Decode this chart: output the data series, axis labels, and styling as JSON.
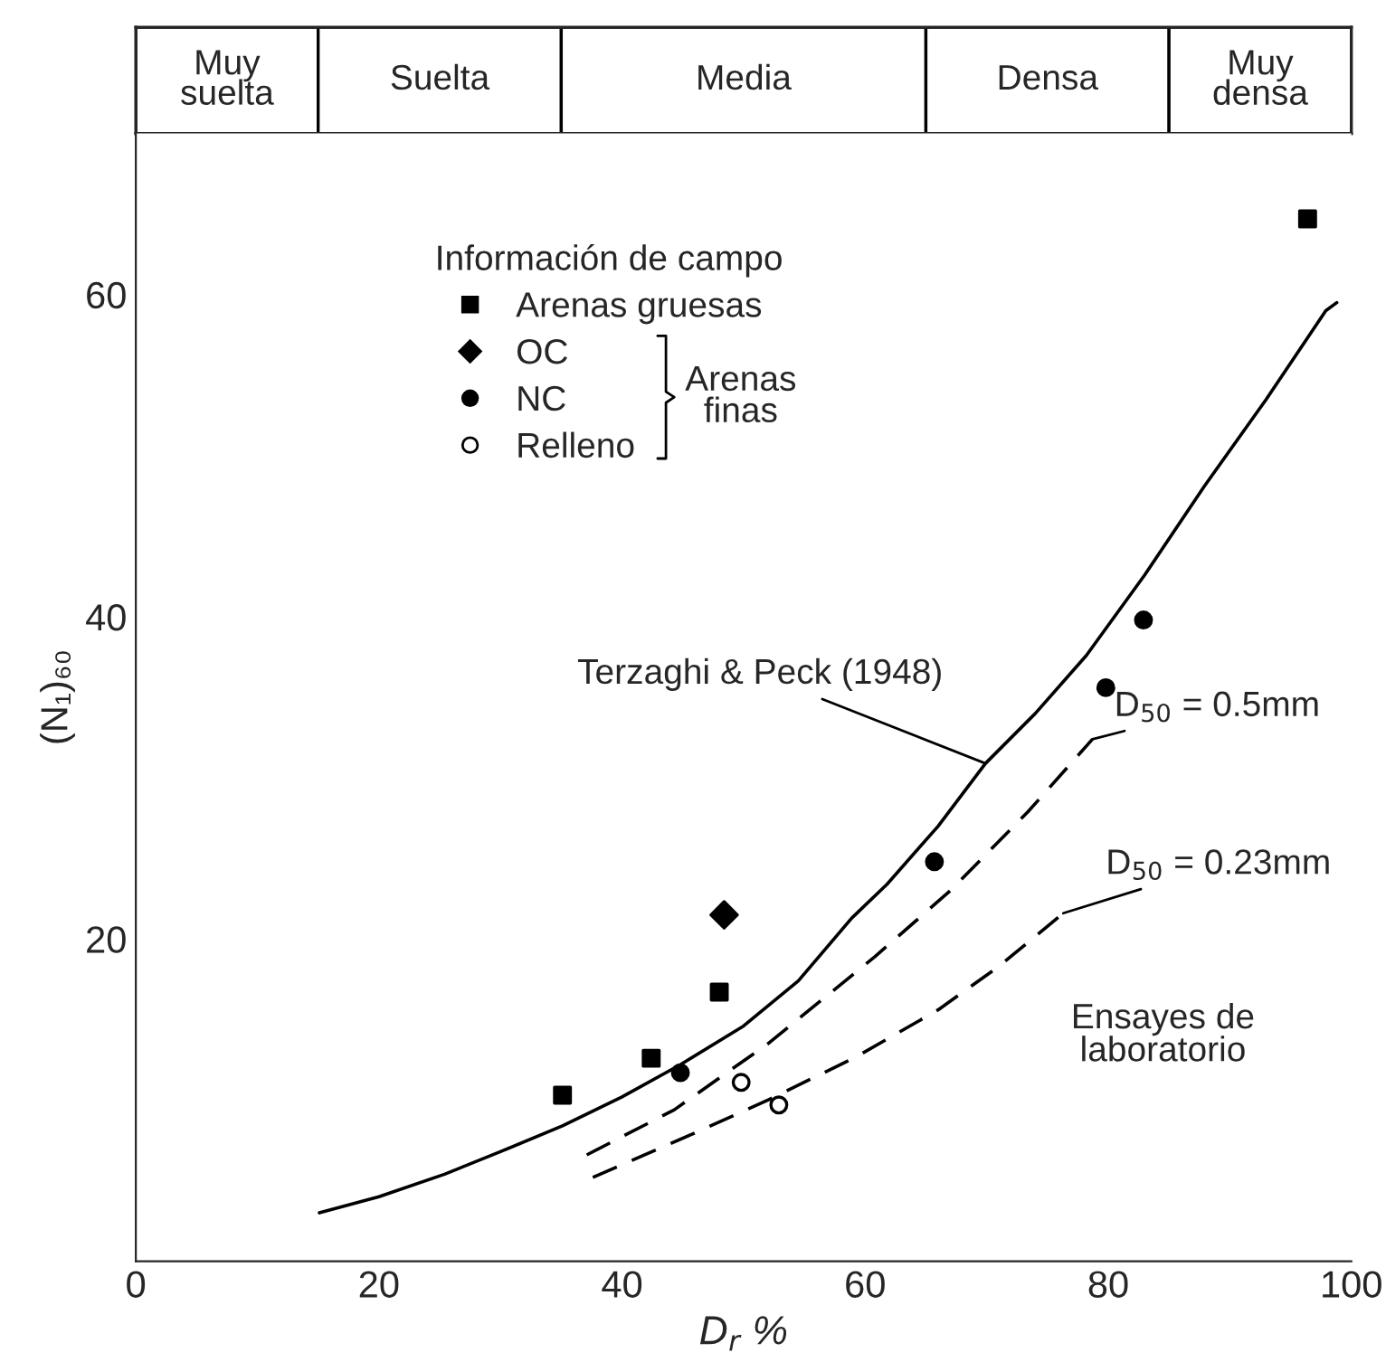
{
  "chart_data": [
    {
      "type": "bar",
      "orientation": "horizontal",
      "stacked": true,
      "categories": [
        null
      ],
      "xlim": [
        0,
        100
      ],
      "series": [
        {
          "color": "#ffffff",
          "values": [
            15
          ],
          "value_labels": [
            "Muy\nsuelta"
          ]
        },
        {
          "color": "#ffffff",
          "values": [
            20
          ],
          "value_labels": [
            "Suelta"
          ]
        },
        {
          "color": "#ffffff",
          "values": [
            30
          ],
          "value_labels": [
            "Media"
          ]
        },
        {
          "color": "#ffffff",
          "values": [
            20
          ],
          "value_labels": [
            "Densa"
          ]
        },
        {
          "color": "#ffffff",
          "values": [
            15
          ],
          "value_labels": [
            "Muy\ndensa"
          ]
        }
      ]
    },
    {
      "type": "scatter",
      "xlabel": "D$_{r}$ %",
      "ylabel": "(N₁)₆₀",
      "legend_title": "Información de campo",
      "xlim": [
        0,
        100
      ],
      "ylim": [
        0,
        70
      ],
      "xticks": [
        0,
        20,
        40,
        60,
        80,
        100
      ],
      "yticks": [
        20,
        40,
        60
      ],
      "legend": "top left",
      "series": [
        {
          "name": "Arenas gruesas",
          "marker": "square",
          "color": "#000000",
          "x": [
            35.1,
            42.4,
            48.0,
            96.4
          ],
          "values": [
            10.3,
            12.6,
            16.7,
            64.7
          ]
        },
        {
          "name": "OC",
          "marker": "diamond",
          "color": "#000000",
          "x": [
            48.4
          ],
          "values": [
            21.5
          ]
        },
        {
          "name": "NC",
          "marker": "circle",
          "color": "#000000",
          "x": [
            44.8,
            65.7,
            79.8,
            82.9
          ],
          "values": [
            11.7,
            24.8,
            35.6,
            39.8
          ]
        },
        {
          "name": "Relleno",
          "marker": "circle",
          "color": "#ffffff",
          "x": [
            49.8,
            52.9
          ],
          "values": [
            11.1,
            9.7
          ]
        },
        {
          "type": "line",
          "line_style": "solid",
          "color": "#000000",
          "x": [
            15.1,
            20.0,
            25.4,
            30.0,
            35.1,
            40.0,
            44.8,
            50.0,
            54.5,
            58.9,
            61.8,
            66.0,
            69.9,
            74.0,
            78.2,
            83.0,
            87.9,
            93.0,
            97.9,
            98.8
          ],
          "values": [
            3.0,
            4.0,
            5.4,
            6.8,
            8.4,
            10.2,
            12.2,
            14.6,
            17.4,
            21.3,
            23.4,
            27.0,
            30.9,
            34.0,
            37.6,
            42.6,
            48.1,
            53.5,
            59.0,
            59.5
          ]
        },
        {
          "type": "line",
          "line_style": "dashed",
          "color": "#000000",
          "x": [
            37.1,
            44.3,
            52.0,
            60.8,
            67.0,
            73.4,
            78.7
          ],
          "values": [
            6.6,
            9.4,
            13.5,
            18.9,
            23.0,
            27.9,
            32.4
          ]
        },
        {
          "type": "line",
          "line_style": "dashed",
          "color": "#000000",
          "x": [
            37.6,
            45.8,
            52.0,
            59.3,
            66.0,
            71.0,
            76.3
          ],
          "values": [
            5.2,
            7.9,
            10.0,
            12.7,
            15.6,
            18.3,
            21.6
          ]
        }
      ],
      "annotations": [
        {
          "text": "Terzaghi & Peck (1948)",
          "x": 69.9,
          "y": 30.9
        },
        {
          "text": "D$_{50}$ = 0.5mm",
          "x": 78.7,
          "y": 32.4
        },
        {
          "text": "D$_{50}$ = 0.23mm",
          "x": 76.3,
          "y": 21.6
        },
        "Ensayes de\nlaboratorio",
        "Arenas\nfinas"
      ]
    }
  ]
}
